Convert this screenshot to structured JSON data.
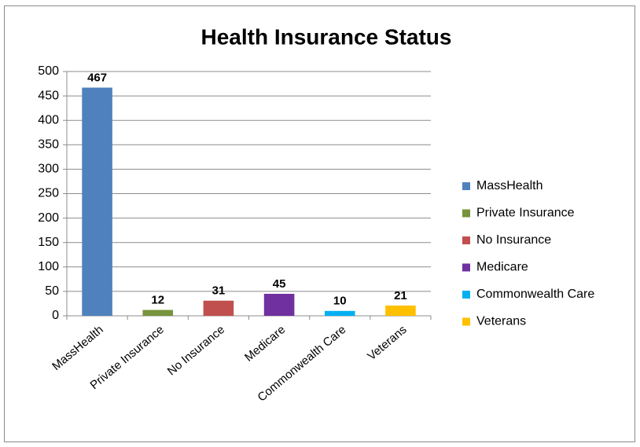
{
  "chart_data": {
    "type": "bar",
    "title": "Health Insurance Status",
    "categories": [
      "MassHealth",
      "Private Insurance",
      "No Insurance",
      "Medicare",
      "Commonwealth Care",
      "Veterans"
    ],
    "values": [
      467,
      12,
      31,
      45,
      10,
      21
    ],
    "colors": [
      "#4f81bd",
      "#77933c",
      "#c0504d",
      "#7030a0",
      "#00b0f0",
      "#ffc000"
    ],
    "ylim": [
      0,
      500
    ],
    "yticks": [
      0,
      50,
      100,
      150,
      200,
      250,
      300,
      350,
      400,
      450,
      500
    ],
    "grid": true,
    "legend": "right"
  }
}
